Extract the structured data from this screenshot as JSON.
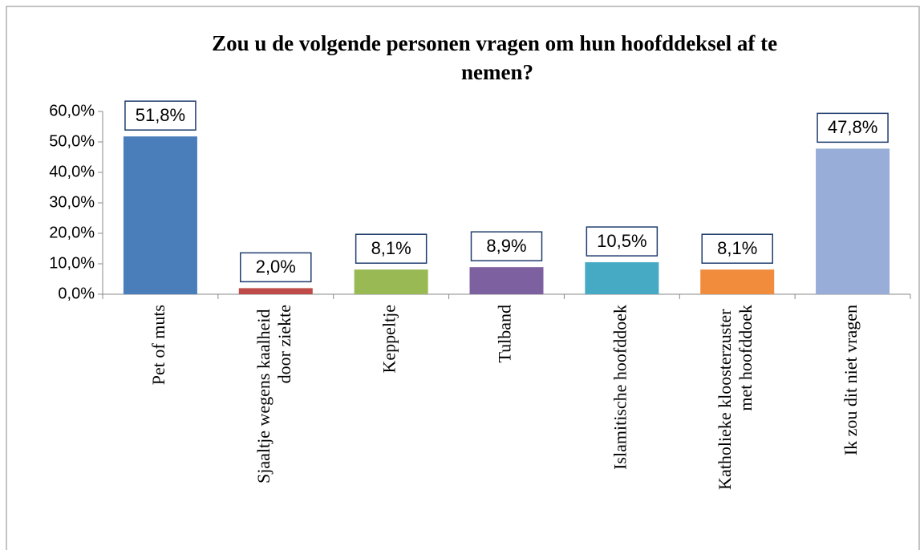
{
  "chart_data": {
    "type": "bar",
    "title": "Zou u de volgende personen vragen om hun hoofddeksel af te nemen?",
    "categories": [
      "Pet of muts",
      "Sjaaltje wegens kaalheid door ziekte",
      "Keppeltje",
      "Tulband",
      "Islamitische hoofddoek",
      "Katholieke kloosterzuster met hoofddoek",
      "Ik zou dit niet vragen"
    ],
    "values": [
      51.8,
      2.0,
      8.1,
      8.9,
      10.5,
      8.1,
      47.8
    ],
    "value_labels": [
      "51,8%",
      "2,0%",
      "8,1%",
      "8,9%",
      "10,5%",
      "8,1%",
      "47,8%"
    ],
    "colors": [
      "#4a7ebb",
      "#be4b48",
      "#98b954",
      "#7d60a0",
      "#46aac5",
      "#f08c3c",
      "#98aed8"
    ],
    "ylim": [
      0,
      60
    ],
    "yticks": [
      {
        "value": 0,
        "label": "0,0%"
      },
      {
        "value": 10,
        "label": "10,0%"
      },
      {
        "value": 20,
        "label": "20,0%"
      },
      {
        "value": 30,
        "label": "30,0%"
      },
      {
        "value": 40,
        "label": "40,0%"
      },
      {
        "value": 50,
        "label": "50,0%"
      },
      {
        "value": 60,
        "label": "60,0%"
      }
    ],
    "grid": false
  }
}
